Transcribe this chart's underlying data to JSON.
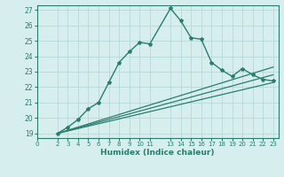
{
  "xlabel": "Humidex (Indice chaleur)",
  "ylabel": "",
  "xlim": [
    0,
    23.5
  ],
  "ylim": [
    18.7,
    27.3
  ],
  "yticks": [
    19,
    20,
    21,
    22,
    23,
    24,
    25,
    26,
    27
  ],
  "xticks": [
    0,
    2,
    3,
    4,
    5,
    6,
    7,
    8,
    9,
    10,
    11,
    13,
    14,
    15,
    16,
    17,
    18,
    19,
    20,
    21,
    22,
    23
  ],
  "background_color": "#d6eeee",
  "line_color": "#2a7d6e",
  "grid_color": "#b8d8d8",
  "lines": [
    {
      "x": [
        2,
        3,
        4,
        5,
        6,
        7,
        8,
        9,
        10,
        11,
        13,
        14,
        15,
        16,
        17,
        18,
        19,
        20,
        21,
        22,
        23
      ],
      "y": [
        19.0,
        19.4,
        19.9,
        20.6,
        21.0,
        22.3,
        23.6,
        24.3,
        24.9,
        24.8,
        27.1,
        26.3,
        25.2,
        25.1,
        23.6,
        23.1,
        22.7,
        23.2,
        22.8,
        22.5,
        22.4
      ],
      "marker": "*",
      "lw": 1.0
    },
    {
      "x": [
        2,
        23
      ],
      "y": [
        19.0,
        23.3
      ],
      "marker": null,
      "lw": 0.9
    },
    {
      "x": [
        2,
        23
      ],
      "y": [
        19.0,
        22.8
      ],
      "marker": null,
      "lw": 0.9
    },
    {
      "x": [
        2,
        23
      ],
      "y": [
        19.0,
        22.3
      ],
      "marker": null,
      "lw": 0.9
    }
  ]
}
